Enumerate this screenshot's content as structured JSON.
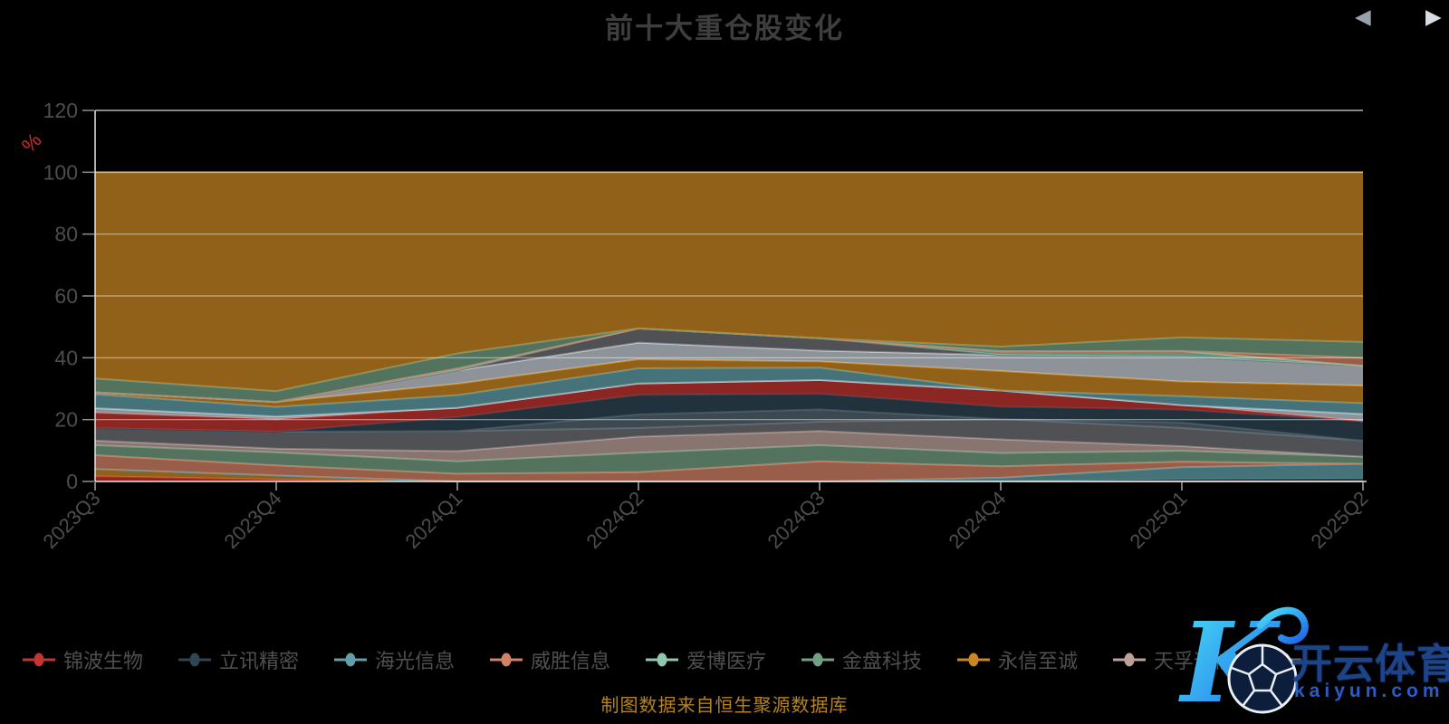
{
  "title": "前十大重仓股变化",
  "caption": "制图数据来自恒生聚源数据库",
  "y_axis": {
    "name": "%",
    "name_color": "#d42a2a",
    "min": 0,
    "max": 120,
    "interval": 20,
    "labels": [
      "0",
      "20",
      "40",
      "60",
      "80",
      "100",
      "120"
    ]
  },
  "x_axis": {
    "categories": [
      "2023Q3",
      "2023Q4",
      "2024Q1",
      "2024Q2",
      "2024Q3",
      "2024Q4",
      "2025Q1",
      "2025Q2"
    ]
  },
  "legend": {
    "items": [
      {
        "label": "锦波生物",
        "color": "#c23531"
      },
      {
        "label": "立讯精密",
        "color": "#2f4554"
      },
      {
        "label": "海光信息",
        "color": "#61a0a8"
      },
      {
        "label": "威胜信息",
        "color": "#d48265"
      },
      {
        "label": "爱博医疗",
        "color": "#91c7ae"
      },
      {
        "label": "金盘科技",
        "color": "#749f83"
      },
      {
        "label": "永信至诚",
        "color": "#ca8622"
      },
      {
        "label": "天孚通信",
        "color": "#bda29a"
      },
      {
        "label": "",
        "color": "#6e7074"
      }
    ],
    "prev_icon": "◀",
    "next_icon": "▶"
  },
  "watermark": {
    "brand": "开云体育",
    "domain": "kaiyun.com"
  },
  "chart_data": {
    "type": "area",
    "stacked": true,
    "title": "前十大重仓股变化",
    "xlabel": "",
    "ylabel": "%",
    "ylim": [
      0,
      120
    ],
    "grid": true,
    "legend_position": "bottom",
    "x": [
      "2023Q3",
      "2023Q4",
      "2024Q1",
      "2024Q2",
      "2024Q3",
      "2024Q4",
      "2025Q1",
      "2025Q2"
    ],
    "series": [
      {
        "name": "锦波生物",
        "color": "#c23531",
        "values": [
          1.7,
          0.6,
          0,
          0,
          0,
          0,
          0,
          0
        ]
      },
      {
        "name": "",
        "color": "#ca8622",
        "values": [
          2.3,
          1.3,
          0,
          0,
          0,
          0,
          0,
          0
        ]
      },
      {
        "name": "",
        "color": "#2f4554",
        "values": [
          0,
          0,
          0,
          0,
          0,
          0,
          0.7,
          0.9
        ]
      },
      {
        "name": "",
        "color": "#61a0a8",
        "values": [
          0,
          0,
          0,
          0,
          0,
          1.2,
          3.9,
          4.8
        ]
      },
      {
        "name": "威胜信息",
        "color": "#d48265",
        "values": [
          4.5,
          3.3,
          2.5,
          3.0,
          6.5,
          3.7,
          1.8,
          0
        ]
      },
      {
        "name": "金盘科技",
        "color": "#749f83",
        "values": [
          3.2,
          4.2,
          4.0,
          6.3,
          5.2,
          4.3,
          3.5,
          2.3
        ]
      },
      {
        "name": "天孚通信",
        "color": "#bda29a",
        "values": [
          1.5,
          1.2,
          3.3,
          5.2,
          4.6,
          4.4,
          1.5,
          0
        ]
      },
      {
        "name": "",
        "color": "#6e7074",
        "values": [
          4.0,
          5.5,
          6.5,
          2.8,
          3.0,
          6.6,
          5.9,
          5.2
        ]
      },
      {
        "name": "",
        "color": "#546570",
        "values": [
          0,
          0,
          0,
          4.4,
          4.0,
          0,
          1.8,
          0
        ]
      },
      {
        "name": "立讯精密",
        "color": "#2f4554",
        "values": [
          0,
          0,
          4.5,
          6.3,
          5.0,
          4.0,
          4.1,
          6.3
        ]
      },
      {
        "name": "",
        "color": "#c23531",
        "values": [
          5.0,
          4.0,
          3.0,
          3.7,
          4.5,
          5.2,
          1.5,
          0
        ]
      },
      {
        "name": "",
        "color": "#c4ccd3",
        "values": [
          1.5,
          0.9,
          0,
          0,
          0,
          0,
          0,
          2.3
        ]
      },
      {
        "name": "海光信息",
        "color": "#61a0a8",
        "values": [
          4.5,
          3.1,
          4.1,
          4.9,
          4.0,
          0,
          2.9,
          3.5
        ]
      },
      {
        "name": "",
        "color": "#ca8622",
        "values": [
          0.6,
          1.6,
          3.7,
          2.9,
          2.0,
          6.3,
          4.7,
          5.7
        ]
      },
      {
        "name": "",
        "color": "#c4ccd3",
        "values": [
          0,
          0,
          4.3,
          5.4,
          3.5,
          5.2,
          7.9,
          6.4
        ]
      },
      {
        "name": "",
        "color": "#6e7074",
        "values": [
          0,
          0,
          0,
          4.6,
          4.0,
          0,
          0,
          0
        ]
      },
      {
        "name": "爱博医疗",
        "color": "#91c7ae",
        "values": [
          0,
          0,
          0.6,
          0,
          0,
          1.2,
          2.0,
          0
        ]
      },
      {
        "name": "",
        "color": "#d48265",
        "values": [
          0,
          0,
          0,
          0,
          0,
          0,
          0,
          2.6
        ]
      },
      {
        "name": "",
        "color": "#749f83",
        "values": [
          4.5,
          3.5,
          4.9,
          0,
          0,
          1.5,
          4.4,
          5.1
        ]
      },
      {
        "name": "永信至诚",
        "color": "#ca8622",
        "values": [
          66.7,
          70.8,
          58.6,
          50.5,
          53.7,
          56.4,
          53.4,
          54.9
        ]
      }
    ]
  }
}
